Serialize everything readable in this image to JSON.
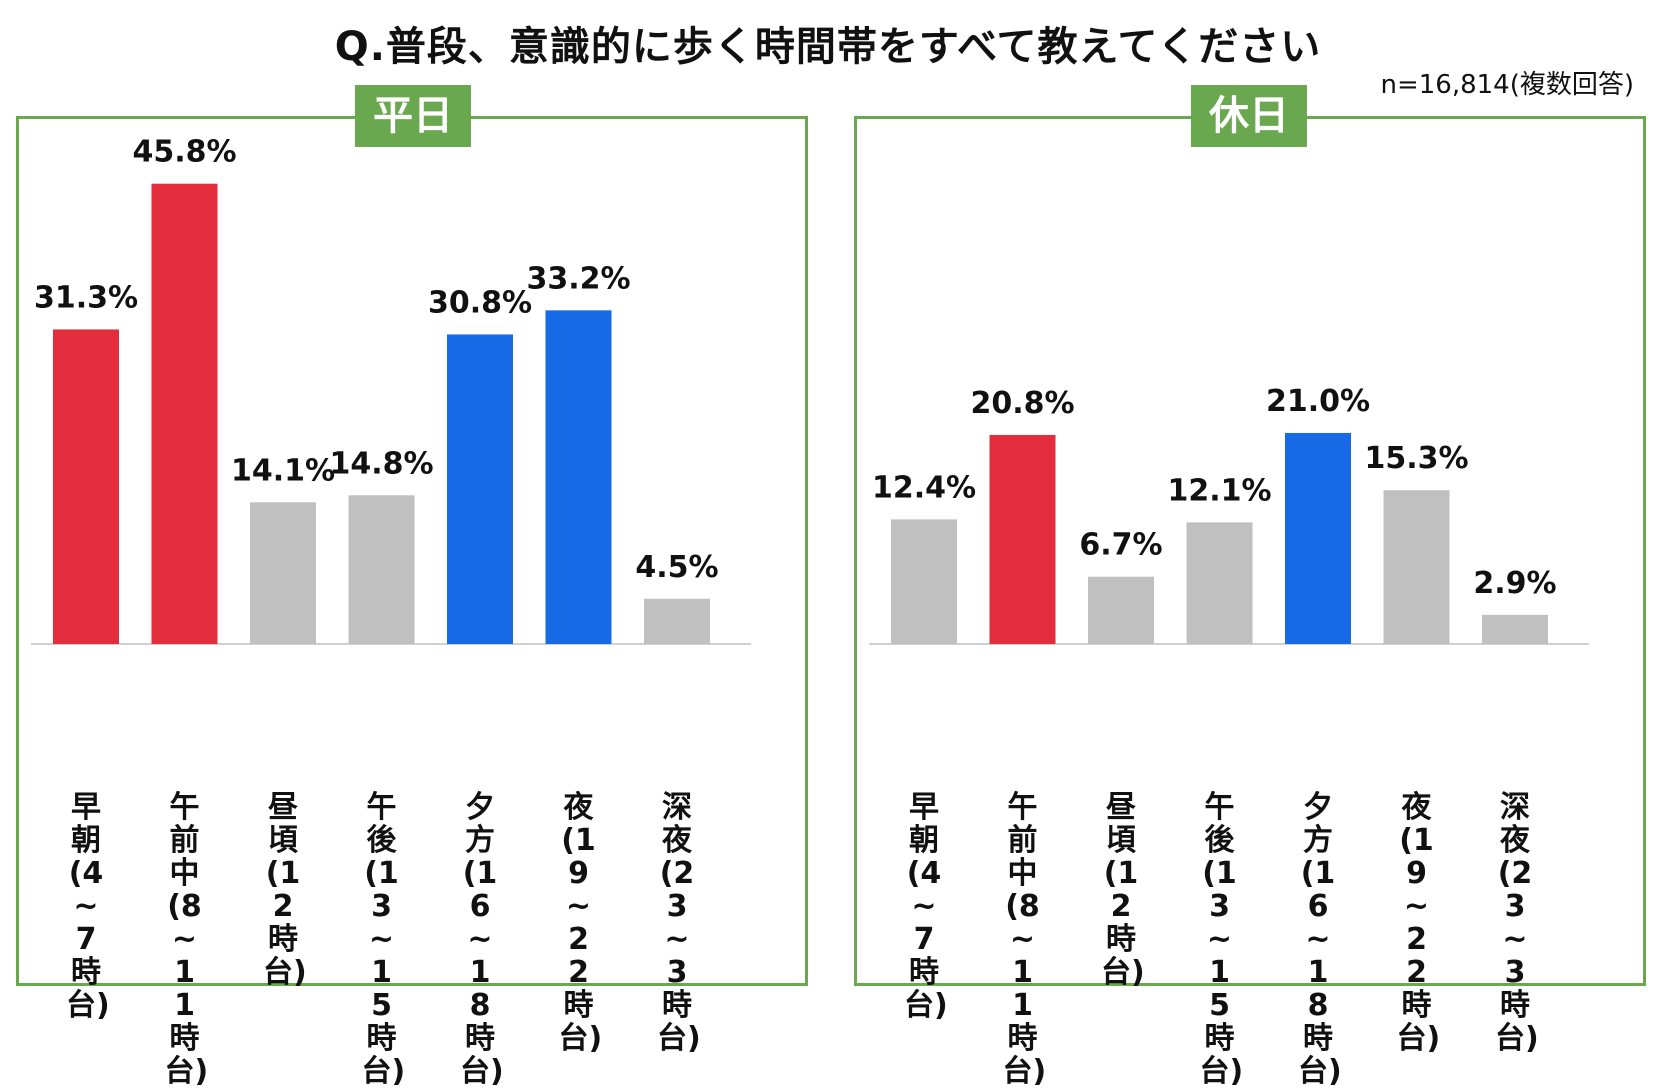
{
  "title": "Q.普段、意識的に歩く時間帯をすべて教えてください",
  "note": "n=16,814(複数回答)",
  "colors": {
    "red": "#e32d3c",
    "blue": "#166ae6",
    "gray": "#c0c0c0",
    "frame": "#6aa84f"
  },
  "chart_data": [
    {
      "type": "bar",
      "panel_label": "平日",
      "categories": [
        "早朝(4~7時台)",
        "午前中(8~11時台)",
        "昼頃(12時台)",
        "午後(13~15時台)",
        "夕方(16~18時台)",
        "夜(19~22時台)",
        "深夜(23~3時台)"
      ],
      "values": [
        31.3,
        45.8,
        14.1,
        14.8,
        30.8,
        33.2,
        4.5
      ],
      "labels": [
        "31.3%",
        "45.8%",
        "14.1%",
        "14.8%",
        "30.8%",
        "33.2%",
        "4.5%"
      ],
      "bar_colors": [
        "red",
        "red",
        "gray",
        "gray",
        "blue",
        "blue",
        "gray"
      ],
      "ylim": [
        0,
        50
      ]
    },
    {
      "type": "bar",
      "panel_label": "休日",
      "categories": [
        "早朝(4~7時台)",
        "午前中(8~11時台)",
        "昼頃(12時台)",
        "午後(13~15時台)",
        "夕方(16~18時台)",
        "夜(19~22時台)",
        "深夜(23~3時台)"
      ],
      "values": [
        12.4,
        20.8,
        6.7,
        12.1,
        21.0,
        15.3,
        2.9
      ],
      "labels": [
        "12.4%",
        "20.8%",
        "6.7%",
        "12.1%",
        "21.0%",
        "15.3%",
        "2.9%"
      ],
      "bar_colors": [
        "gray",
        "red",
        "gray",
        "gray",
        "blue",
        "gray",
        "gray"
      ],
      "ylim": [
        0,
        50
      ]
    }
  ]
}
